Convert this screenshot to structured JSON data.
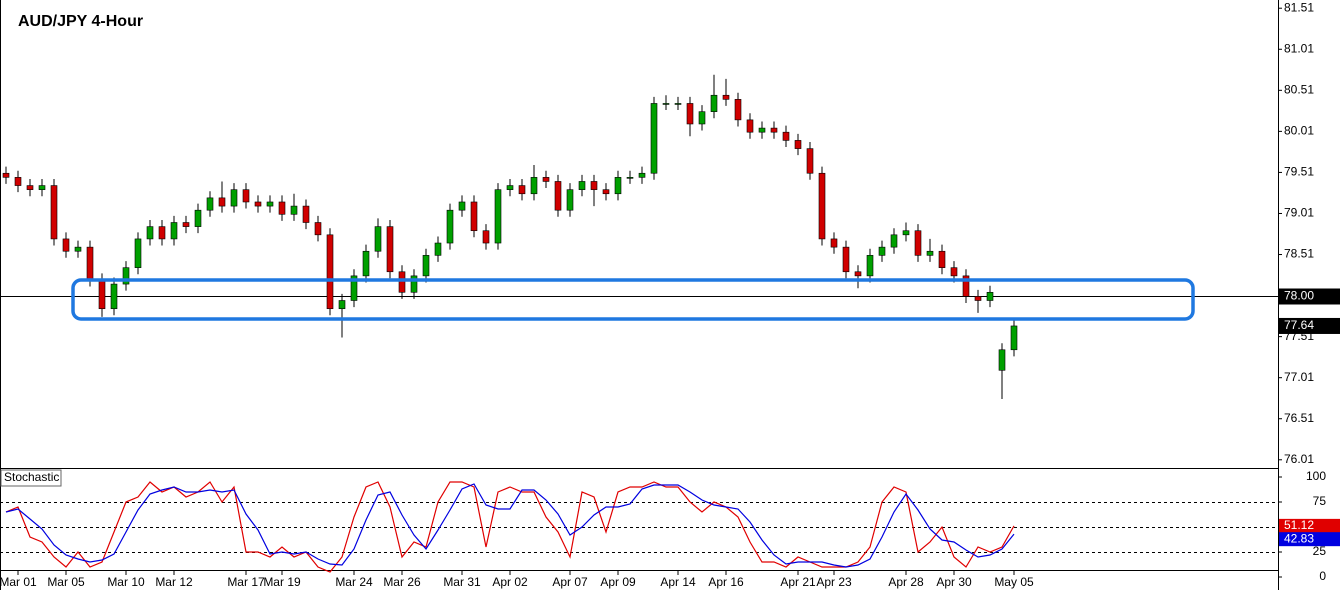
{
  "chart_data": [
    {
      "type": "candlestick",
      "title": "AUD/JPY 4-Hour",
      "up_color": "#00a000",
      "down_color": "#d00000",
      "ylim": [
        75.91,
        81.61
      ],
      "yticks": [
        81.51,
        81.01,
        80.51,
        80.01,
        79.51,
        79.01,
        78.51,
        78.01,
        77.51,
        77.01,
        76.51,
        76.01
      ],
      "hline": {
        "value": 78,
        "label": "78.00"
      },
      "categories": [
        null,
        "Mar 01",
        null,
        null,
        null,
        "Mar 05",
        null,
        null,
        null,
        null,
        "Mar 10",
        null,
        null,
        null,
        "Mar 12",
        null,
        null,
        null,
        null,
        null,
        "Mar 17",
        null,
        null,
        "Mar 19",
        null,
        null,
        null,
        null,
        null,
        "Mar 24",
        null,
        null,
        null,
        "Mar 26",
        null,
        null,
        null,
        null,
        "Mar 31",
        null,
        null,
        null,
        "Apr 02",
        null,
        null,
        null,
        null,
        "Apr 07",
        null,
        null,
        null,
        "Apr 09",
        null,
        null,
        null,
        null,
        "Apr 14",
        null,
        null,
        null,
        "Apr 16",
        null,
        null,
        null,
        null,
        null,
        "Apr 21",
        null,
        null,
        "Apr 23",
        null,
        null,
        null,
        null,
        null,
        "Apr 28",
        null,
        null,
        null,
        "Apr 30",
        null,
        null,
        null,
        null,
        "May 05"
      ],
      "ohlc": [
        [
          79.5,
          79.58,
          79.37,
          79.45
        ],
        [
          79.45,
          79.53,
          79.27,
          79.35
        ],
        [
          79.35,
          79.43,
          79.22,
          79.3
        ],
        [
          79.3,
          79.43,
          79.22,
          79.35
        ],
        [
          79.35,
          79.43,
          78.62,
          78.7
        ],
        [
          78.7,
          78.78,
          78.47,
          78.55
        ],
        [
          78.55,
          78.68,
          78.47,
          78.6
        ],
        [
          78.6,
          78.68,
          78.12,
          78.2
        ],
        [
          78.2,
          78.28,
          77.75,
          77.85
        ],
        [
          77.85,
          78.23,
          77.77,
          78.15
        ],
        [
          78.15,
          78.43,
          78.07,
          78.35
        ],
        [
          78.35,
          78.78,
          78.27,
          78.7
        ],
        [
          78.7,
          78.93,
          78.62,
          78.85
        ],
        [
          78.85,
          78.93,
          78.62,
          78.7
        ],
        [
          78.7,
          78.98,
          78.62,
          78.9
        ],
        [
          78.9,
          78.98,
          78.77,
          78.85
        ],
        [
          78.85,
          79.13,
          78.77,
          79.05
        ],
        [
          79.05,
          79.28,
          78.97,
          79.2
        ],
        [
          79.2,
          79.4,
          79.02,
          79.1
        ],
        [
          79.1,
          79.38,
          79.02,
          79.3
        ],
        [
          79.3,
          79.38,
          79.07,
          79.15
        ],
        [
          79.15,
          79.23,
          79.02,
          79.1
        ],
        [
          79.1,
          79.23,
          79.02,
          79.15
        ],
        [
          79.15,
          79.23,
          78.92,
          79.0
        ],
        [
          79.0,
          79.25,
          78.92,
          79.1
        ],
        [
          79.1,
          79.18,
          78.82,
          78.9
        ],
        [
          78.9,
          78.98,
          78.67,
          78.75
        ],
        [
          78.75,
          78.83,
          77.77,
          77.85
        ],
        [
          77.85,
          78.03,
          77.5,
          77.95
        ],
        [
          77.95,
          78.33,
          77.87,
          78.25
        ],
        [
          78.25,
          78.63,
          78.17,
          78.55
        ],
        [
          78.55,
          78.95,
          78.47,
          78.85
        ],
        [
          78.85,
          78.93,
          78.22,
          78.3
        ],
        [
          78.3,
          78.38,
          77.97,
          78.05
        ],
        [
          78.05,
          78.33,
          77.97,
          78.25
        ],
        [
          78.25,
          78.58,
          78.17,
          78.5
        ],
        [
          78.5,
          78.73,
          78.42,
          78.65
        ],
        [
          78.65,
          79.13,
          78.57,
          79.05
        ],
        [
          79.05,
          79.23,
          78.97,
          79.15
        ],
        [
          79.15,
          79.23,
          78.72,
          78.8
        ],
        [
          78.8,
          78.88,
          78.57,
          78.65
        ],
        [
          78.65,
          79.38,
          78.57,
          79.3
        ],
        [
          79.3,
          79.43,
          79.22,
          79.35
        ],
        [
          79.35,
          79.43,
          79.17,
          79.25
        ],
        [
          79.25,
          79.6,
          79.17,
          79.45
        ],
        [
          79.45,
          79.53,
          79.32,
          79.4
        ],
        [
          79.4,
          79.48,
          78.97,
          79.05
        ],
        [
          79.05,
          79.38,
          78.97,
          79.3
        ],
        [
          79.3,
          79.48,
          79.22,
          79.4
        ],
        [
          79.4,
          79.48,
          79.1,
          79.3
        ],
        [
          79.3,
          79.38,
          79.17,
          79.25
        ],
        [
          79.25,
          79.53,
          79.17,
          79.45
        ],
        [
          79.45,
          79.53,
          79.37,
          79.45
        ],
        [
          79.45,
          79.58,
          79.37,
          79.5
        ],
        [
          79.5,
          80.43,
          79.42,
          80.35
        ],
        [
          80.35,
          80.45,
          80.27,
          80.35
        ],
        [
          80.35,
          80.43,
          80.27,
          80.35
        ],
        [
          80.35,
          80.43,
          79.95,
          80.1
        ],
        [
          80.1,
          80.33,
          80.02,
          80.25
        ],
        [
          80.25,
          80.7,
          80.17,
          80.45
        ],
        [
          80.45,
          80.65,
          80.32,
          80.4
        ],
        [
          80.4,
          80.48,
          80.07,
          80.15
        ],
        [
          80.15,
          80.23,
          79.92,
          80.0
        ],
        [
          80.0,
          80.13,
          79.92,
          80.05
        ],
        [
          80.05,
          80.13,
          79.92,
          80.0
        ],
        [
          80.0,
          80.08,
          79.82,
          79.9
        ],
        [
          79.9,
          79.98,
          79.72,
          79.8
        ],
        [
          79.8,
          79.88,
          79.42,
          79.5
        ],
        [
          79.5,
          79.58,
          78.62,
          78.7
        ],
        [
          78.7,
          78.78,
          78.52,
          78.6
        ],
        [
          78.6,
          78.68,
          78.22,
          78.3
        ],
        [
          78.3,
          78.38,
          78.1,
          78.25
        ],
        [
          78.25,
          78.58,
          78.17,
          78.5
        ],
        [
          78.5,
          78.68,
          78.42,
          78.6
        ],
        [
          78.6,
          78.83,
          78.52,
          78.75
        ],
        [
          78.75,
          78.9,
          78.67,
          78.8
        ],
        [
          78.8,
          78.88,
          78.42,
          78.5
        ],
        [
          78.5,
          78.7,
          78.42,
          78.55
        ],
        [
          78.55,
          78.63,
          78.27,
          78.35
        ],
        [
          78.35,
          78.43,
          78.17,
          78.25
        ],
        [
          78.25,
          78.33,
          77.92,
          78.0
        ],
        [
          78.0,
          78.08,
          77.8,
          77.95
        ],
        [
          77.95,
          78.13,
          77.87,
          78.05
        ],
        [
          77.1,
          77.43,
          76.75,
          77.35
        ],
        [
          77.35,
          77.72,
          77.27,
          77.64
        ]
      ]
    },
    {
      "type": "line",
      "title": "Stochastic",
      "ylim": [
        -13,
        109
      ],
      "yticks": [
        100,
        75,
        50,
        25,
        0
      ],
      "levels": [
        75,
        50,
        25
      ],
      "series": [
        {
          "color": "#e00000",
          "values": [
            65,
            70,
            40,
            35,
            20,
            10,
            25,
            10,
            15,
            45,
            75,
            80,
            95,
            85,
            90,
            80,
            85,
            95,
            75,
            90,
            25,
            25,
            20,
            30,
            20,
            25,
            10,
            5,
            20,
            60,
            90,
            95,
            70,
            20,
            35,
            30,
            75,
            95,
            95,
            90,
            30,
            85,
            90,
            85,
            85,
            60,
            45,
            20,
            85,
            80,
            45,
            85,
            90,
            90,
            95,
            90,
            90,
            75,
            65,
            75,
            70,
            60,
            35,
            15,
            15,
            10,
            20,
            15,
            10,
            10,
            10,
            15,
            30,
            75,
            90,
            85,
            25,
            35,
            50,
            20,
            10,
            30,
            25,
            30,
            51.12
          ]
        },
        {
          "color": "#0000e0",
          "values": [
            65,
            68,
            58,
            48,
            32,
            22,
            18,
            15,
            17,
            23,
            45,
            67,
            83,
            87,
            90,
            85,
            85,
            87,
            85,
            87,
            63,
            47,
            23,
            25,
            23,
            25,
            18,
            13,
            12,
            28,
            57,
            82,
            85,
            62,
            42,
            28,
            47,
            67,
            88,
            93,
            72,
            68,
            68,
            87,
            87,
            77,
            63,
            42,
            50,
            62,
            70,
            70,
            73,
            88,
            92,
            92,
            92,
            85,
            77,
            72,
            70,
            68,
            55,
            37,
            22,
            13,
            15,
            15,
            15,
            12,
            10,
            12,
            18,
            40,
            65,
            83,
            67,
            48,
            37,
            35,
            27,
            20,
            22,
            28,
            42.83
          ]
        }
      ]
    }
  ]
}
